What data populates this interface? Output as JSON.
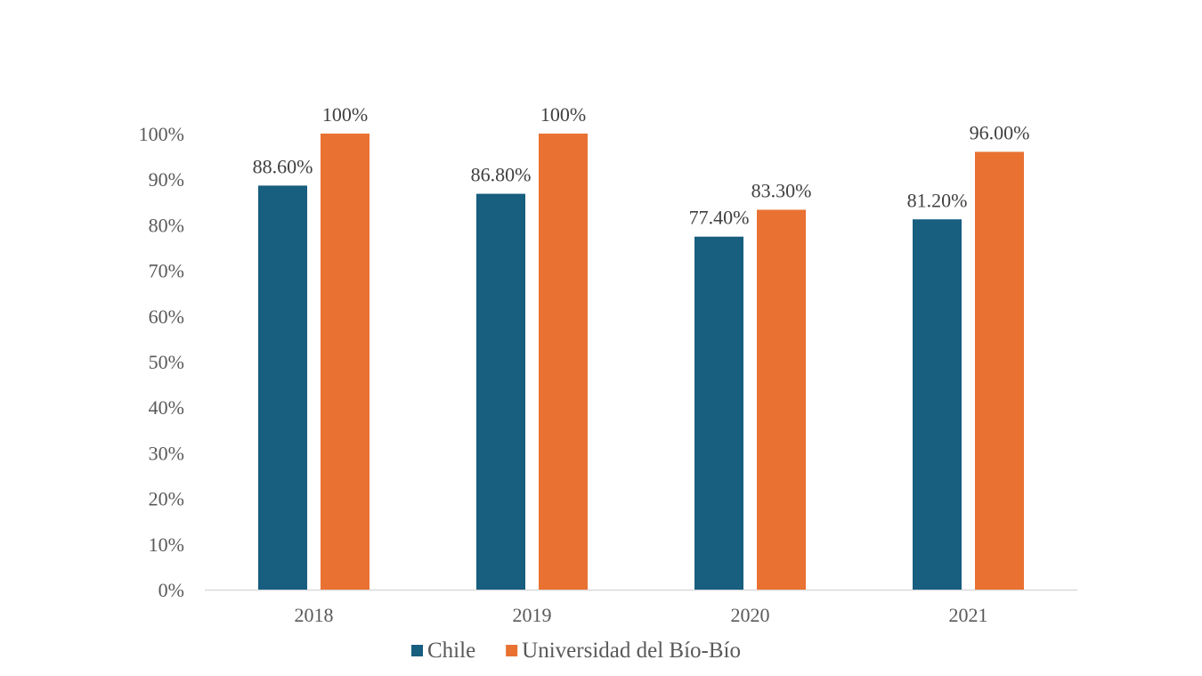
{
  "chart_data": {
    "type": "bar",
    "categories": [
      "2018",
      "2019",
      "2020",
      "2021"
    ],
    "series": [
      {
        "name": "Chile",
        "color": "#175E7F",
        "values": [
          88.6,
          86.8,
          77.4,
          81.2
        ],
        "labels": [
          "88.60%",
          "86.80%",
          "77.40%",
          "81.20%"
        ]
      },
      {
        "name": "Universidad del Bío-Bío",
        "color": "#E97132",
        "values": [
          100,
          100,
          83.3,
          96.0
        ],
        "labels": [
          "100%",
          "100%",
          "83.30%",
          "96.00%"
        ]
      }
    ],
    "ylim": [
      0,
      100
    ],
    "yticks": [
      "0%",
      "10%",
      "20%",
      "30%",
      "40%",
      "50%",
      "60%",
      "70%",
      "80%",
      "90%",
      "100%"
    ],
    "grid": false,
    "legend_position": "bottom",
    "title": "",
    "xlabel": "",
    "ylabel": ""
  }
}
